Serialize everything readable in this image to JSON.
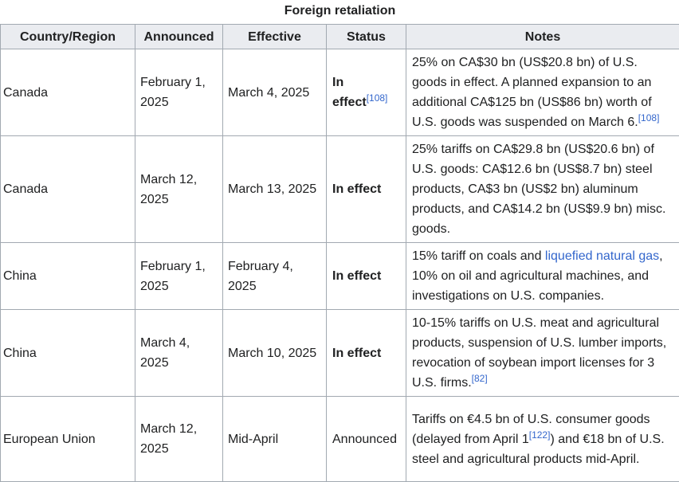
{
  "table": {
    "caption": "Foreign retaliation",
    "headers": [
      "Country/Region",
      "Announced",
      "Effective",
      "Status",
      "Notes"
    ],
    "rows": [
      {
        "country": "Canada",
        "announced": "February 1, 2025",
        "effective": "March 4, 2025",
        "status": [
          {
            "bold": "In effect"
          },
          {
            "ref": "[108]"
          }
        ],
        "notes": [
          {
            "text": "25% on CA$30 bn (US$20.8 bn) of U.S. goods in effect. A planned expansion to an additional CA$125 bn (US$86 bn) worth of U.S. goods was suspended on March 6."
          },
          {
            "ref": "[108]"
          }
        ]
      },
      {
        "country": "Canada",
        "announced": "March 12, 2025",
        "effective": "March 13, 2025",
        "status": [
          {
            "bold": "In effect"
          }
        ],
        "notes": [
          {
            "text": "25% tariffs on CA$29.8 bn (US$20.6 bn) of U.S. goods: CA$12.6 bn (US$8.7 bn) steel products, CA$3 bn (US$2 bn) aluminum products, and CA$14.2 bn (US$9.9 bn) misc. goods."
          }
        ]
      },
      {
        "country": "China",
        "announced": "February 1, 2025",
        "effective": "February 4, 2025",
        "status": [
          {
            "bold": "In effect"
          }
        ],
        "notes": [
          {
            "text": "15% tariff on coals and "
          },
          {
            "link": "liquefied natural gas"
          },
          {
            "text": ", 10% on oil and agricultural machines, and investigations on U.S. companies."
          }
        ]
      },
      {
        "country": "China",
        "announced": "March 4, 2025",
        "effective": "March 10, 2025",
        "status": [
          {
            "bold": "In effect"
          }
        ],
        "notes": [
          {
            "text": "10-15% tariffs on U.S. meat and agricultural products, suspension of U.S. lumber imports, revocation of soybean import licenses for 3 U.S. firms."
          },
          {
            "ref": "[82]"
          }
        ]
      },
      {
        "country": "European Union",
        "announced": "March 12, 2025",
        "effective": "Mid-April",
        "status": [
          {
            "text": "Announced"
          }
        ],
        "notes": [
          {
            "text": "Tariffs on €4.5 bn of U.S. consumer goods (delayed from April 1"
          },
          {
            "ref": "[122]"
          },
          {
            "text": ") and €18 bn of U.S. steel and agricultural products mid-April."
          }
        ]
      }
    ]
  }
}
